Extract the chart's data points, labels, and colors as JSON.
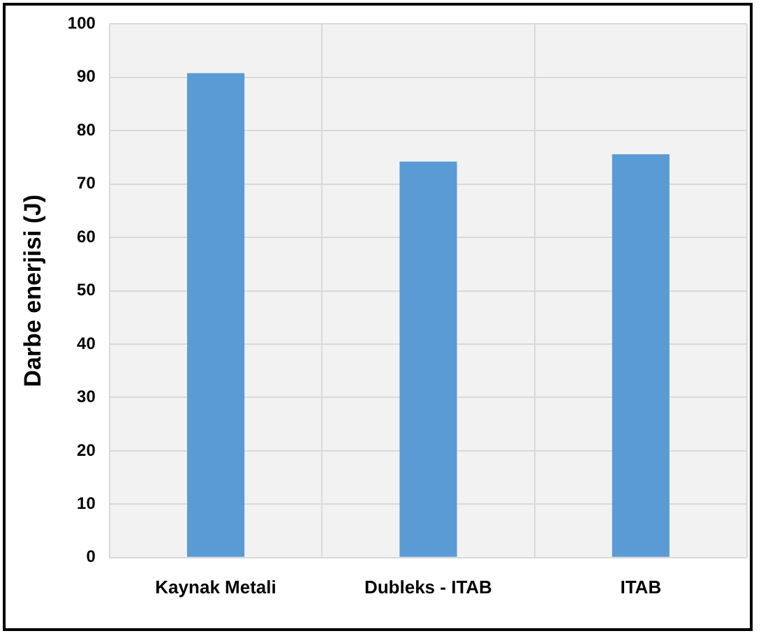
{
  "chart_data": {
    "type": "bar",
    "ylabel": "Darbe enerjisi (J)",
    "categories": [
      "Kaynak Metali",
      "Dubleks - ITAB",
      "ITAB"
    ],
    "values": [
      90.8,
      74.2,
      75.6
    ],
    "color": "#5b9bd5",
    "ylim": [
      0,
      100
    ],
    "yticks": [
      0,
      10,
      20,
      30,
      40,
      50,
      60,
      70,
      80,
      90,
      100
    ],
    "grid": true
  }
}
